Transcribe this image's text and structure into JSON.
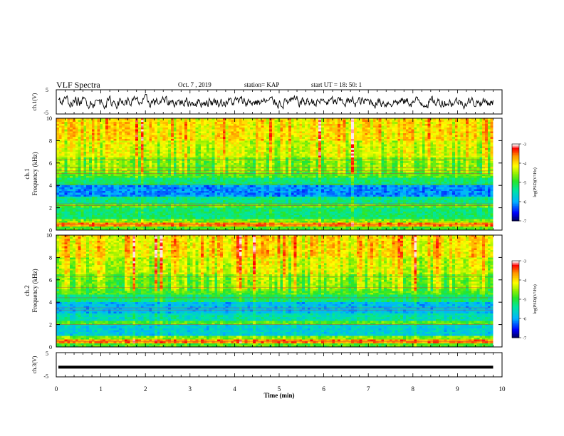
{
  "header": {
    "title": "VLF Spectra",
    "date": "Oct. 7 , 2019",
    "station": "station= KAP",
    "start_time": "start UT = 18: 50: 1"
  },
  "chart_data": [
    {
      "type": "line",
      "name": "ch1-waveform",
      "ylabel": "ch.1(V)",
      "xlim": [
        0,
        10
      ],
      "ylim": [
        -5,
        5
      ],
      "yticks": [
        "5",
        "-5"
      ],
      "data_extent_min": [
        0,
        9.8
      ],
      "series": [
        {
          "values_description_only": true
        }
      ]
    },
    {
      "type": "heatmap",
      "name": "ch1-spectrogram",
      "ylabel": "ch.1\nFrequency (kHz)",
      "xlim": [
        0,
        10
      ],
      "ylim": [
        0,
        10
      ],
      "yticks": [
        "0",
        "2",
        "4",
        "6",
        "8",
        "10"
      ],
      "data_extent_min": [
        0,
        9.8
      ]
    },
    {
      "type": "heatmap",
      "name": "ch2-spectrogram",
      "ylabel": "ch.2\nFrequency (kHz)",
      "xlim": [
        0,
        10
      ],
      "ylim": [
        0,
        10
      ],
      "yticks": [
        "0",
        "2",
        "4",
        "6",
        "8",
        "10"
      ],
      "data_extent_min": [
        0,
        9.8
      ]
    },
    {
      "type": "line",
      "name": "ch3-waveform",
      "ylabel": "ch.3(V)",
      "xlim": [
        0,
        10
      ],
      "ylim": [
        -5,
        5
      ],
      "yticks": [
        "5",
        "-5"
      ],
      "level_volts": -1
    }
  ],
  "xaxis": {
    "label": "Time (min)",
    "ticks": [
      "0",
      "1",
      "2",
      "3",
      "4",
      "5",
      "6",
      "7",
      "8",
      "9",
      "10"
    ]
  },
  "colorbar": {
    "label": "log(PSD)(V²/Hz)",
    "ticks": [
      "-3",
      "-4",
      "-5",
      "-6",
      "-7"
    ],
    "range": [
      -7,
      -3
    ],
    "colors": [
      "#000080",
      "#0000ff",
      "#00c8ff",
      "#00ff80",
      "#80ff00",
      "#ffff00",
      "#ffa000",
      "#ff0000",
      "#ffffff"
    ]
  }
}
